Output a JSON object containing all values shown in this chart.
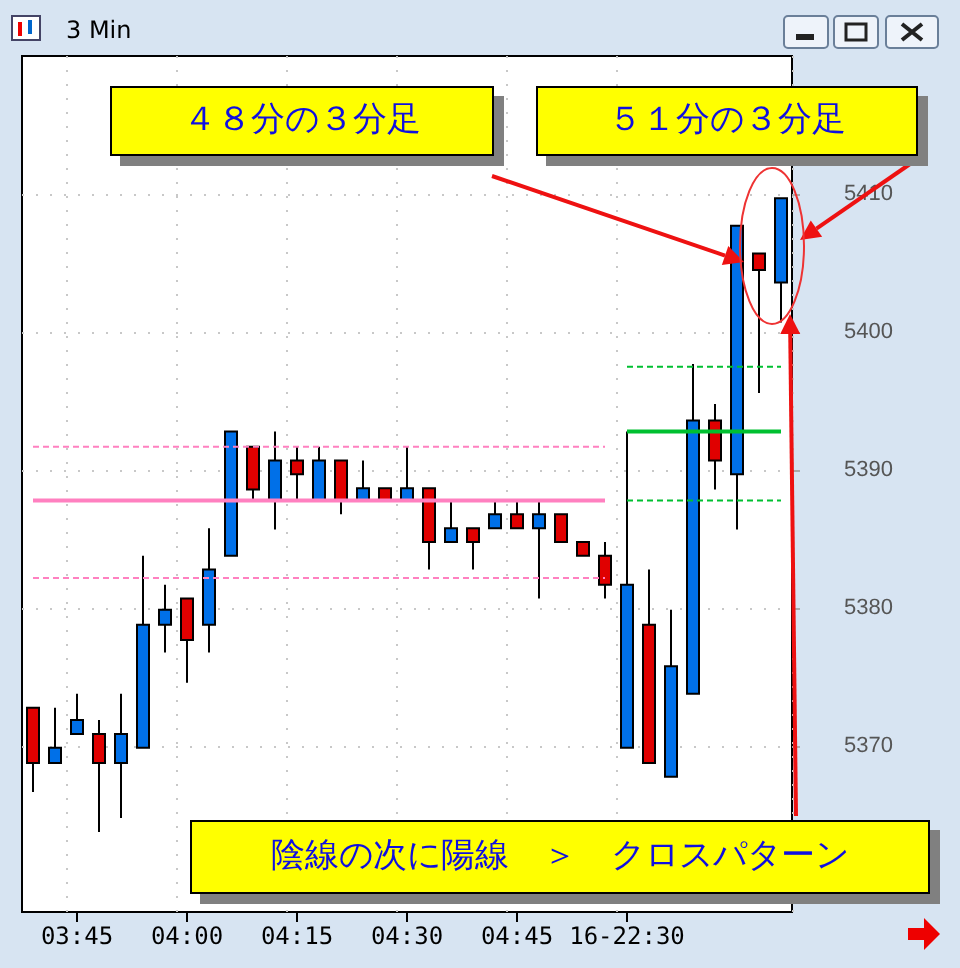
{
  "chart_data": {
    "type": "candlestick",
    "title": "3 Min",
    "categories": [
      null,
      null,
      "03:45",
      null,
      null,
      null,
      null,
      "04:00",
      null,
      null,
      null,
      null,
      "04:15",
      null,
      null,
      null,
      null,
      "04:30",
      null,
      null,
      null,
      null,
      "04:45",
      null,
      null,
      null,
      null,
      "16-22:30",
      null,
      null,
      null,
      null,
      null,
      null,
      null
    ],
    "ohlc": [
      [
        5372.8,
        5372.8,
        5366.7,
        5368.8
      ],
      [
        5368.8,
        5372.8,
        5368.8,
        5369.9
      ],
      [
        5370.9,
        5373.8,
        5370.9,
        5371.9
      ],
      [
        5370.9,
        5371.9,
        5363.8,
        5368.8
      ],
      [
        5368.8,
        5373.8,
        5364.8,
        5370.9
      ],
      [
        5369.9,
        5383.8,
        5369.9,
        5378.8
      ],
      [
        5378.8,
        5381.7,
        5376.8,
        5379.9
      ],
      [
        5380.7,
        5380.7,
        5374.6,
        5377.7
      ],
      [
        5378.8,
        5385.8,
        5376.8,
        5382.8
      ],
      [
        5383.8,
        5392.8,
        5383.8,
        5392.8
      ],
      [
        5391.7,
        5391.7,
        5387.7,
        5388.6
      ],
      [
        5387.8,
        5392.8,
        5385.7,
        5390.7
      ],
      [
        5390.7,
        5391.7,
        5387.7,
        5389.7
      ],
      [
        5387.8,
        5391.7,
        5387.8,
        5390.7
      ],
      [
        5390.7,
        5390.7,
        5386.8,
        5387.8
      ],
      [
        5387.8,
        5390.7,
        5387.8,
        5388.7
      ],
      [
        5388.7,
        5388.7,
        5387.8,
        5387.8
      ],
      [
        5387.8,
        5391.7,
        5387.8,
        5388.7
      ],
      [
        5388.7,
        5388.7,
        5382.8,
        5384.8
      ],
      [
        5384.8,
        5387.8,
        5384.8,
        5385.8
      ],
      [
        5385.8,
        5385.8,
        5382.8,
        5384.8
      ],
      [
        5385.8,
        5387.8,
        5385.8,
        5386.8
      ],
      [
        5386.8,
        5387.8,
        5385.8,
        5385.8
      ],
      [
        5385.8,
        5387.8,
        5380.7,
        5386.8
      ],
      [
        5386.8,
        5386.8,
        5384.8,
        5384.8
      ],
      [
        5384.8,
        5384.8,
        5383.8,
        5383.8
      ],
      [
        5383.8,
        5384.8,
        5380.7,
        5381.7
      ],
      [
        5369.9,
        5392.8,
        5369.9,
        5381.7
      ],
      [
        5378.8,
        5382.8,
        5368.8,
        5368.8
      ],
      [
        5367.8,
        5379.9,
        5367.8,
        5375.8
      ],
      [
        5373.8,
        5397.7,
        5373.8,
        5393.6
      ],
      [
        5393.6,
        5394.8,
        5388.6,
        5390.7
      ],
      [
        5389.7,
        5407.7,
        5385.7,
        5407.7
      ],
      [
        5405.7,
        5405.7,
        5395.6,
        5404.5
      ],
      [
        5403.6,
        5409.7,
        5400.7,
        5409.7
      ]
    ],
    "colors": [
      "#e00000",
      "#0070e8",
      "#0070e8",
      "#e00000",
      "#0070e8",
      "#0070e8",
      "#0070e8",
      "#e00000",
      "#0070e8",
      "#0070e8",
      "#e00000",
      "#0070e8",
      "#e00000",
      "#0070e8",
      "#e00000",
      "#0070e8",
      "#e00000",
      "#0070e8",
      "#e00000",
      "#0070e8",
      "#e00000",
      "#0070e8",
      "#e00000",
      "#0070e8",
      "#e00000",
      "#e00000",
      "#e00000",
      "#0070e8",
      "#e00000",
      "#0070e8",
      "#0070e8",
      "#e00000",
      "#0070e8",
      "#e00000",
      "#0070e8"
    ],
    "series": [
      {
        "type": "line",
        "color": "#ff80c0",
        "line_style": "solid",
        "values": [
          5387.8,
          5387.8,
          5387.8,
          5387.8,
          5387.8,
          5387.8,
          5387.8,
          5387.8,
          5387.8,
          5387.8,
          5387.8,
          5387.8,
          5387.8,
          5387.8,
          5387.8,
          5387.8,
          5387.8,
          5387.8,
          5387.8,
          5387.8,
          5387.8,
          5387.8,
          5387.8,
          5387.8,
          5387.8,
          5387.8,
          5387.8,
          null,
          null,
          null,
          null,
          null,
          null,
          null,
          null
        ]
      },
      {
        "type": "line",
        "color": "#ff80c0",
        "line_style": "dashed",
        "values": [
          5391.7,
          5391.7,
          5391.7,
          5391.7,
          5391.7,
          5391.7,
          5391.7,
          5391.7,
          5391.7,
          5391.7,
          5391.7,
          5391.7,
          5391.7,
          5391.7,
          5391.7,
          5391.7,
          5391.7,
          5391.7,
          5391.7,
          5391.7,
          5391.7,
          5391.7,
          5391.7,
          5391.7,
          5391.7,
          5391.7,
          5391.7,
          null,
          null,
          null,
          null,
          null,
          null,
          null,
          null
        ]
      },
      {
        "type": "line",
        "color": "#ff80c0",
        "line_style": "dashed",
        "values": [
          5382.2,
          5382.2,
          5382.2,
          5382.2,
          5382.2,
          5382.2,
          5382.2,
          5382.2,
          5382.2,
          5382.2,
          5382.2,
          5382.2,
          5382.2,
          5382.2,
          5382.2,
          5382.2,
          5382.2,
          5382.2,
          5382.2,
          5382.2,
          5382.2,
          5382.2,
          5382.2,
          5382.2,
          5382.2,
          5382.2,
          5382.2,
          null,
          null,
          null,
          null,
          null,
          null,
          null,
          null
        ]
      },
      {
        "type": "line",
        "color": "#00c030",
        "line_style": "solid",
        "values": [
          null,
          null,
          null,
          null,
          null,
          null,
          null,
          null,
          null,
          null,
          null,
          null,
          null,
          null,
          null,
          null,
          null,
          null,
          null,
          null,
          null,
          null,
          null,
          null,
          null,
          null,
          null,
          5392.8,
          5392.8,
          5392.8,
          5392.8,
          5392.8,
          5392.8,
          5392.8,
          5392.8
        ]
      },
      {
        "type": "line",
        "color": "#00c030",
        "line_style": "dashed",
        "values": [
          null,
          null,
          null,
          null,
          null,
          null,
          null,
          null,
          null,
          null,
          null,
          null,
          null,
          null,
          null,
          null,
          null,
          null,
          null,
          null,
          null,
          null,
          null,
          null,
          null,
          null,
          null,
          5397.5,
          5397.5,
          5397.5,
          5397.5,
          5397.5,
          5397.5,
          5397.5,
          5397.5
        ]
      },
      {
        "type": "line",
        "color": "#00c030",
        "line_style": "dashed",
        "values": [
          null,
          null,
          null,
          null,
          null,
          null,
          null,
          null,
          null,
          null,
          null,
          null,
          null,
          null,
          null,
          null,
          null,
          null,
          null,
          null,
          null,
          null,
          null,
          null,
          null,
          null,
          null,
          5387.8,
          5387.8,
          5387.8,
          5387.8,
          5387.8,
          5387.8,
          5387.8,
          5387.8
        ]
      }
    ],
    "ylim": [
      5358,
      5420
    ],
    "yticks": [
      5370,
      5380,
      5390,
      5400,
      5410
    ],
    "grid": true,
    "marker": "none",
    "annotations": [
      "４８分の３分足",
      "５１分の３分足",
      "陰線の次に陽線　＞　クロスパターン"
    ]
  }
}
